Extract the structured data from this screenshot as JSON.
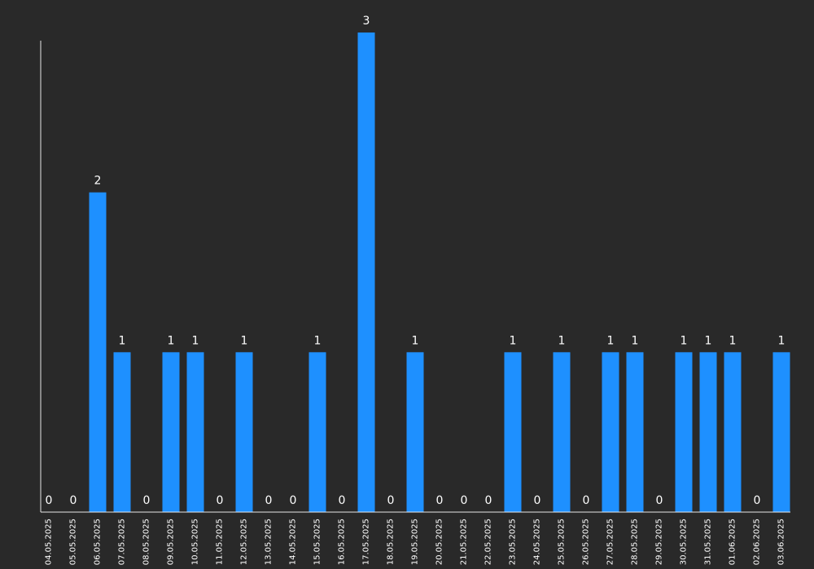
{
  "chart_data": {
    "type": "bar",
    "title": "",
    "xlabel": "",
    "ylabel": "",
    "ylim": [
      0,
      3
    ],
    "grid": false,
    "legend": "none",
    "bar_color": "#1e90ff",
    "background_color": "#292929",
    "text_color": "#ffffff",
    "categories": [
      "04.05.2025",
      "05.05.2025",
      "06.05.2025",
      "07.05.2025",
      "08.05.2025",
      "09.05.2025",
      "10.05.2025",
      "11.05.2025",
      "12.05.2025",
      "13.05.2025",
      "14.05.2025",
      "15.05.2025",
      "16.05.2025",
      "17.05.2025",
      "18.05.2025",
      "19.05.2025",
      "20.05.2025",
      "21.05.2025",
      "22.05.2025",
      "23.05.2025",
      "24.05.2025",
      "25.05.2025",
      "26.05.2025",
      "27.05.2025",
      "28.05.2025",
      "29.05.2025",
      "30.05.2025",
      "31.05.2025",
      "01.06.2025",
      "02.06.2025",
      "03.06.2025"
    ],
    "values": [
      0,
      0,
      2,
      1,
      0,
      1,
      1,
      0,
      1,
      0,
      0,
      1,
      0,
      3,
      0,
      1,
      0,
      0,
      0,
      1,
      0,
      1,
      0,
      1,
      1,
      0,
      1,
      1,
      1,
      0,
      1
    ]
  }
}
